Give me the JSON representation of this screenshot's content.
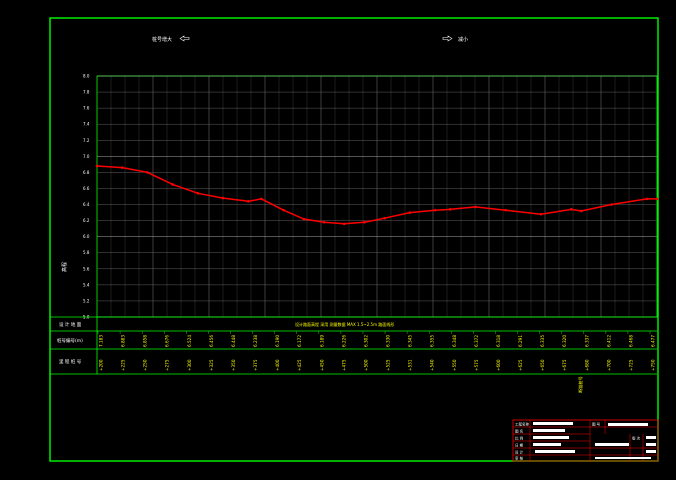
{
  "header": {
    "left_label": "桩号增大",
    "right_label": "减小"
  },
  "colors": {
    "frame": "#00ff00",
    "grid": "#ffffff",
    "profile": "#ff0000",
    "value_text": "#ffff00",
    "label_text": "#ffffff"
  },
  "chart_data": {
    "type": "line",
    "ylabel": "高程",
    "y_ticks": [
      "5.0",
      "5.2",
      "5.4",
      "5.6",
      "5.8",
      "6.0",
      "6.2",
      "6.4",
      "6.6",
      "6.8",
      "7.0",
      "7.2",
      "7.4",
      "7.6",
      "7.8",
      "8.0"
    ],
    "ylim": [
      5.0,
      8.0
    ],
    "grid": true,
    "points": [
      {
        "x": 0,
        "y": 6.88
      },
      {
        "x": 25,
        "y": 6.86
      },
      {
        "x": 50,
        "y": 6.8
      },
      {
        "x": 75,
        "y": 6.65
      },
      {
        "x": 100,
        "y": 6.54
      },
      {
        "x": 125,
        "y": 6.48
      },
      {
        "x": 150,
        "y": 6.44
      },
      {
        "x": 163,
        "y": 6.47
      },
      {
        "x": 185,
        "y": 6.33
      },
      {
        "x": 205,
        "y": 6.22
      },
      {
        "x": 225,
        "y": 6.18
      },
      {
        "x": 245,
        "y": 6.16
      },
      {
        "x": 265,
        "y": 6.18
      },
      {
        "x": 285,
        "y": 6.23
      },
      {
        "x": 310,
        "y": 6.3
      },
      {
        "x": 335,
        "y": 6.33
      },
      {
        "x": 350,
        "y": 6.34
      },
      {
        "x": 375,
        "y": 6.37
      },
      {
        "x": 405,
        "y": 6.33
      },
      {
        "x": 440,
        "y": 6.28
      },
      {
        "x": 470,
        "y": 6.34
      },
      {
        "x": 480,
        "y": 6.32
      },
      {
        "x": 510,
        "y": 6.4
      },
      {
        "x": 545,
        "y": 6.47
      },
      {
        "x": 555,
        "y": 6.47
      }
    ]
  },
  "table": {
    "row_labels": [
      "设 计 地 面",
      "桩号编号(m)",
      "里 程 桩 号"
    ],
    "note": "设计路面高程 采用 测量数据 MAX 1.5~2.5m 路面线形",
    "elevations": [
      "7.183",
      "6.883",
      "6.858",
      "6.676",
      "6.524",
      "6.456",
      "6.448",
      "6.238",
      "6.190",
      "6.172",
      "6.189",
      "6.226",
      "6.302",
      "6.330",
      "6.345",
      "6.355",
      "6.348",
      "6.372",
      "6.318",
      "6.291",
      "6.335",
      "6.320",
      "6.337",
      "6.412",
      "6.468",
      "6.477"
    ],
    "stations": [
      "+200",
      "+225",
      "+250",
      "+275",
      "+300",
      "+325",
      "+350",
      "+375",
      "+400",
      "+425",
      "+450",
      "+475",
      "+500",
      "+525",
      "+531",
      "+540",
      "+550",
      "+575",
      "+600",
      "+625",
      "+650",
      "+675",
      "+680",
      "+700",
      "+725",
      "+750"
    ],
    "break_mark": "断链桩号"
  },
  "title_block": {
    "label_project": "工程名称",
    "label_drawing": "图 名",
    "label_scale": "比 例",
    "label_date": "日 期",
    "label_drawn": "设 计",
    "label_check": "审 核",
    "label_no": "图 号",
    "label_ver": "版 次"
  }
}
